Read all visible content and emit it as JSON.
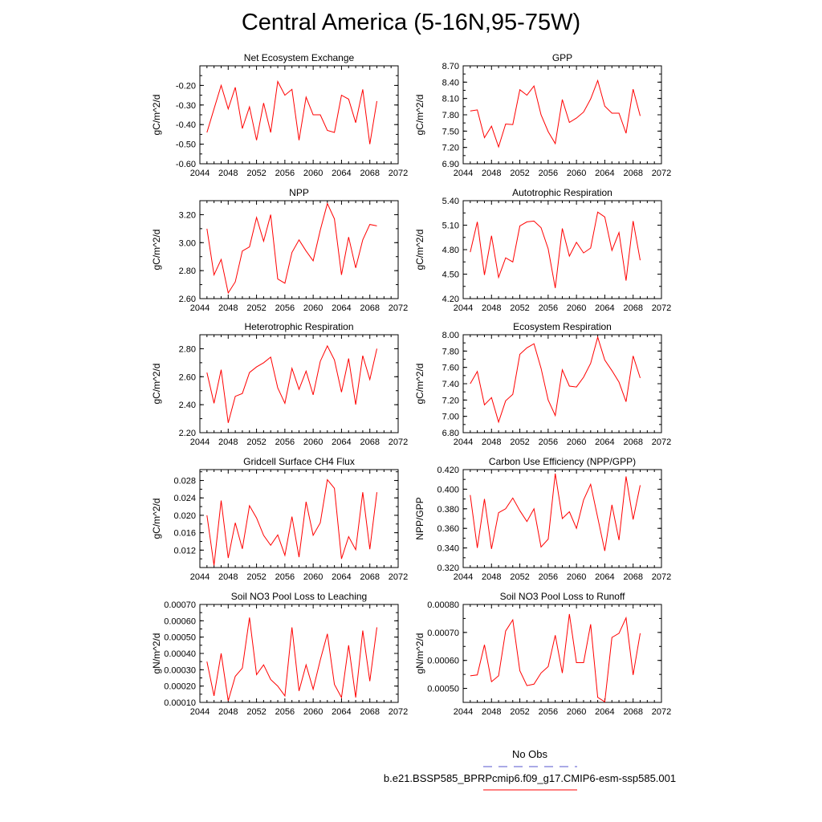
{
  "title": "Central America (5-16N,95-75W)",
  "legend": {
    "obs_label": "No Obs",
    "model_label": "b.e21.BSSP585_BPRPcmip6.f09_g17.CMIP6-esm-ssp585.001",
    "obs_color": "#5555cc",
    "model_color": "#ff0000"
  },
  "chart_data": [
    {
      "type": "line",
      "title": "Net Ecosystem Exchange",
      "ylabel": "gC/m^2/d",
      "xlim": [
        2044,
        2072
      ],
      "xticks": [
        2044,
        2048,
        2052,
        2056,
        2060,
        2064,
        2068,
        2072
      ],
      "ylim": [
        -0.6,
        -0.1
      ],
      "yticks": [
        "-0.60",
        "-0.50",
        "-0.40",
        "-0.30",
        "-0.20"
      ],
      "series": [
        {
          "x": [
            2045,
            2046,
            2047,
            2048,
            2049,
            2050,
            2051,
            2052,
            2053,
            2054,
            2055,
            2056,
            2057,
            2058,
            2059,
            2060,
            2061,
            2062,
            2063,
            2064,
            2065,
            2066,
            2067,
            2068,
            2069
          ],
          "values": [
            -0.44,
            -0.32,
            -0.2,
            -0.32,
            -0.21,
            -0.42,
            -0.31,
            -0.48,
            -0.29,
            -0.44,
            -0.18,
            -0.25,
            -0.22,
            -0.48,
            -0.26,
            -0.35,
            -0.35,
            -0.43,
            -0.44,
            -0.25,
            -0.27,
            -0.39,
            -0.22,
            -0.5,
            -0.28
          ]
        }
      ]
    },
    {
      "type": "line",
      "title": "GPP",
      "ylabel": "gC/m^2/d",
      "xlim": [
        2044,
        2072
      ],
      "xticks": [
        2044,
        2048,
        2052,
        2056,
        2060,
        2064,
        2068,
        2072
      ],
      "ylim": [
        6.9,
        8.7
      ],
      "yticks": [
        "6.90",
        "7.20",
        "7.50",
        "7.80",
        "8.10",
        "8.40",
        "8.70"
      ],
      "series": [
        {
          "x": [
            2045,
            2046,
            2047,
            2048,
            2049,
            2050,
            2051,
            2052,
            2053,
            2054,
            2055,
            2056,
            2057,
            2058,
            2059,
            2060,
            2061,
            2062,
            2063,
            2064,
            2065,
            2066,
            2067,
            2068,
            2069
          ],
          "values": [
            7.87,
            7.89,
            7.38,
            7.59,
            7.21,
            7.63,
            7.62,
            8.26,
            8.16,
            8.33,
            7.8,
            7.49,
            7.27,
            8.08,
            7.66,
            7.74,
            7.85,
            8.09,
            8.43,
            7.96,
            7.83,
            7.83,
            7.46,
            8.27,
            7.78
          ]
        }
      ]
    },
    {
      "type": "line",
      "title": "NPP",
      "ylabel": "gC/m^2/d",
      "xlim": [
        2044,
        2072
      ],
      "xticks": [
        2044,
        2048,
        2052,
        2056,
        2060,
        2064,
        2068,
        2072
      ],
      "ylim": [
        2.6,
        3.3
      ],
      "yticks": [
        "2.60",
        "2.80",
        "3.00",
        "3.20"
      ],
      "series": [
        {
          "x": [
            2045,
            2046,
            2047,
            2048,
            2049,
            2050,
            2051,
            2052,
            2053,
            2054,
            2055,
            2056,
            2057,
            2058,
            2059,
            2060,
            2061,
            2062,
            2063,
            2064,
            2065,
            2066,
            2067,
            2068,
            2069
          ],
          "values": [
            3.1,
            2.77,
            2.88,
            2.64,
            2.72,
            2.94,
            2.97,
            3.18,
            3.01,
            3.2,
            2.74,
            2.71,
            2.93,
            3.02,
            2.94,
            2.87,
            3.09,
            3.28,
            3.17,
            2.77,
            3.04,
            2.82,
            3.02,
            3.13,
            3.12
          ]
        }
      ]
    },
    {
      "type": "line",
      "title": "Autotrophic Respiration",
      "ylabel": "gC/m^2/d",
      "xlim": [
        2044,
        2072
      ],
      "xticks": [
        2044,
        2048,
        2052,
        2056,
        2060,
        2064,
        2068,
        2072
      ],
      "ylim": [
        4.2,
        5.4
      ],
      "yticks": [
        "4.20",
        "4.50",
        "4.80",
        "5.10",
        "5.40"
      ],
      "series": [
        {
          "x": [
            2045,
            2046,
            2047,
            2048,
            2049,
            2050,
            2051,
            2052,
            2053,
            2054,
            2055,
            2056,
            2057,
            2058,
            2059,
            2060,
            2061,
            2062,
            2063,
            2064,
            2065,
            2066,
            2067,
            2068,
            2069
          ],
          "values": [
            4.77,
            5.14,
            4.49,
            4.97,
            4.46,
            4.7,
            4.65,
            5.09,
            5.14,
            5.15,
            5.07,
            4.81,
            4.33,
            5.06,
            4.72,
            4.89,
            4.76,
            4.82,
            5.26,
            5.2,
            4.79,
            5.01,
            4.42,
            5.15,
            4.67
          ]
        }
      ]
    },
    {
      "type": "line",
      "title": "Heterotrophic Respiration",
      "ylabel": "gC/m^2/d",
      "xlim": [
        2044,
        2072
      ],
      "xticks": [
        2044,
        2048,
        2052,
        2056,
        2060,
        2064,
        2068,
        2072
      ],
      "ylim": [
        2.2,
        2.9
      ],
      "yticks": [
        "2.20",
        "2.40",
        "2.60",
        "2.80"
      ],
      "series": [
        {
          "x": [
            2045,
            2046,
            2047,
            2048,
            2049,
            2050,
            2051,
            2052,
            2053,
            2054,
            2055,
            2056,
            2057,
            2058,
            2059,
            2060,
            2061,
            2062,
            2063,
            2064,
            2065,
            2066,
            2067,
            2068,
            2069
          ],
          "values": [
            2.63,
            2.41,
            2.65,
            2.27,
            2.46,
            2.48,
            2.63,
            2.67,
            2.7,
            2.74,
            2.52,
            2.41,
            2.66,
            2.51,
            2.64,
            2.47,
            2.71,
            2.82,
            2.72,
            2.49,
            2.73,
            2.4,
            2.75,
            2.58,
            2.8
          ]
        }
      ]
    },
    {
      "type": "line",
      "title": "Ecosystem Respiration",
      "ylabel": "gC/m^2/d",
      "xlim": [
        2044,
        2072
      ],
      "xticks": [
        2044,
        2048,
        2052,
        2056,
        2060,
        2064,
        2068,
        2072
      ],
      "ylim": [
        6.8,
        8.0
      ],
      "yticks": [
        "6.80",
        "7.00",
        "7.20",
        "7.40",
        "7.60",
        "7.80",
        "8.00"
      ],
      "series": [
        {
          "x": [
            2045,
            2046,
            2047,
            2048,
            2049,
            2050,
            2051,
            2052,
            2053,
            2054,
            2055,
            2056,
            2057,
            2058,
            2059,
            2060,
            2061,
            2062,
            2063,
            2064,
            2065,
            2066,
            2067,
            2068,
            2069
          ],
          "values": [
            7.4,
            7.55,
            7.14,
            7.23,
            6.93,
            7.19,
            7.27,
            7.76,
            7.84,
            7.89,
            7.59,
            7.2,
            7.01,
            7.57,
            7.37,
            7.36,
            7.48,
            7.65,
            7.97,
            7.69,
            7.56,
            7.42,
            7.18,
            7.74,
            7.47
          ]
        }
      ]
    },
    {
      "type": "line",
      "title": "Gridcell Surface CH4 Flux",
      "ylabel": "gC/m^2/d",
      "xlim": [
        2044,
        2072
      ],
      "xticks": [
        2044,
        2048,
        2052,
        2056,
        2060,
        2064,
        2068,
        2072
      ],
      "ylim": [
        0.008,
        0.0305
      ],
      "yticks": [
        "0.012",
        "0.016",
        "0.020",
        "0.024",
        "0.028"
      ],
      "series": [
        {
          "x": [
            2045,
            2046,
            2047,
            2048,
            2049,
            2050,
            2051,
            2052,
            2053,
            2054,
            2055,
            2056,
            2057,
            2058,
            2059,
            2060,
            2061,
            2062,
            2063,
            2064,
            2065,
            2066,
            2067,
            2068,
            2069
          ],
          "values": [
            0.02,
            0.0085,
            0.0234,
            0.0102,
            0.0183,
            0.0123,
            0.0222,
            0.0194,
            0.0154,
            0.0131,
            0.0155,
            0.0108,
            0.0197,
            0.0104,
            0.0231,
            0.0154,
            0.0183,
            0.0282,
            0.0262,
            0.01,
            0.0151,
            0.0121,
            0.0253,
            0.0122,
            0.0253
          ]
        }
      ]
    },
    {
      "type": "line",
      "title": "Carbon Use Efficiency (NPP/GPP)",
      "ylabel": "NPP/GPP",
      "xlim": [
        2044,
        2072
      ],
      "xticks": [
        2044,
        2048,
        2052,
        2056,
        2060,
        2064,
        2068,
        2072
      ],
      "ylim": [
        0.32,
        0.42
      ],
      "yticks": [
        "0.320",
        "0.340",
        "0.360",
        "0.380",
        "0.400",
        "0.420"
      ],
      "series": [
        {
          "x": [
            2045,
            2046,
            2047,
            2048,
            2049,
            2050,
            2051,
            2052,
            2053,
            2054,
            2055,
            2056,
            2057,
            2058,
            2059,
            2060,
            2061,
            2062,
            2063,
            2064,
            2065,
            2066,
            2067,
            2068,
            2069
          ],
          "values": [
            0.394,
            0.34,
            0.39,
            0.339,
            0.376,
            0.38,
            0.391,
            0.378,
            0.367,
            0.38,
            0.341,
            0.349,
            0.416,
            0.37,
            0.377,
            0.36,
            0.389,
            0.405,
            0.371,
            0.337,
            0.384,
            0.348,
            0.413,
            0.369,
            0.404
          ]
        }
      ]
    },
    {
      "type": "line",
      "title": "Soil NO3 Pool Loss to Leaching",
      "ylabel": "gN/m^2/d",
      "xlim": [
        2044,
        2072
      ],
      "xticks": [
        2044,
        2048,
        2052,
        2056,
        2060,
        2064,
        2068,
        2072
      ],
      "ylim": [
        0.0001,
        0.0007
      ],
      "yticks": [
        "0.00010",
        "0.00020",
        "0.00030",
        "0.00040",
        "0.00050",
        "0.00060",
        "0.00070"
      ],
      "series": [
        {
          "x": [
            2045,
            2046,
            2047,
            2048,
            2049,
            2050,
            2051,
            2052,
            2053,
            2054,
            2055,
            2056,
            2057,
            2058,
            2059,
            2060,
            2061,
            2062,
            2063,
            2064,
            2065,
            2066,
            2067,
            2068,
            2069
          ],
          "values": [
            0.00035,
            0.00014,
            0.0004,
            0.00011,
            0.00026,
            0.00031,
            0.00062,
            0.00027,
            0.00033,
            0.00024,
            0.0002,
            0.00014,
            0.00056,
            0.00017,
            0.00033,
            0.00018,
            0.00036,
            0.00052,
            0.00021,
            0.00013,
            0.00045,
            0.00013,
            0.00054,
            0.00023,
            0.00056
          ]
        }
      ]
    },
    {
      "type": "line",
      "title": "Soil NO3 Pool Loss to Runoff",
      "ylabel": "gN/m^2/d",
      "xlim": [
        2044,
        2072
      ],
      "xticks": [
        2044,
        2048,
        2052,
        2056,
        2060,
        2064,
        2068,
        2072
      ],
      "ylim": [
        0.00045,
        0.0008
      ],
      "yticks": [
        "0.00050",
        "0.00060",
        "0.00070",
        "0.00080"
      ],
      "series": [
        {
          "x": [
            2045,
            2046,
            2047,
            2048,
            2049,
            2050,
            2051,
            2052,
            2053,
            2054,
            2055,
            2056,
            2057,
            2058,
            2059,
            2060,
            2061,
            2062,
            2063,
            2064,
            2065,
            2066,
            2067,
            2068,
            2069
          ],
          "values": [
            0.000545,
            0.000548,
            0.000656,
            0.000524,
            0.000545,
            0.000705,
            0.000745,
            0.000563,
            0.00051,
            0.000515,
            0.000555,
            0.000578,
            0.00069,
            0.000555,
            0.000766,
            0.000592,
            0.000592,
            0.000729,
            0.000468,
            0.000452,
            0.000682,
            0.000697,
            0.000752,
            0.000548,
            0.000697
          ]
        }
      ]
    }
  ]
}
